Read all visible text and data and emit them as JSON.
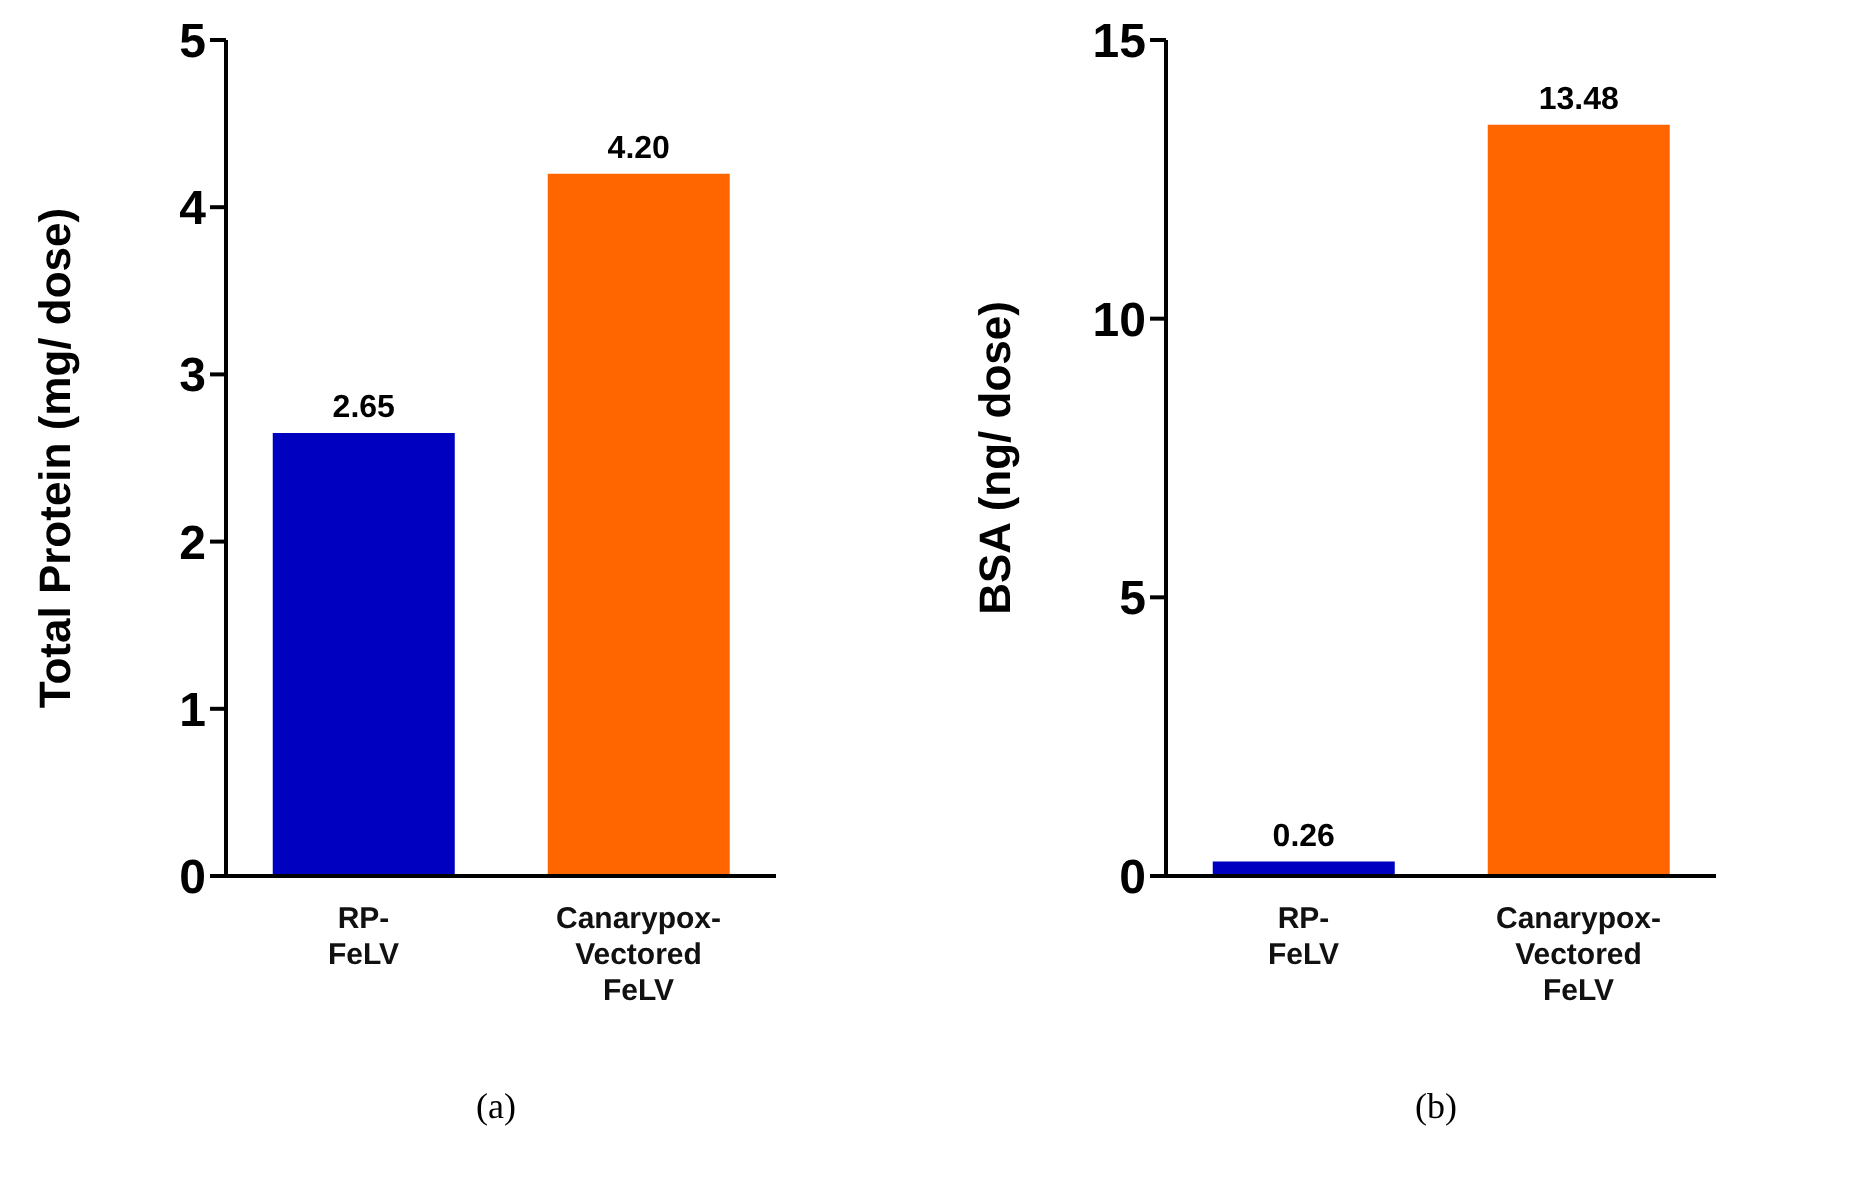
{
  "chart_data": [
    {
      "type": "bar",
      "ylabel": "Total Protein (mg/ dose)",
      "categories": [
        "RP-FeLV",
        "Canarypox-Vectored FeLV"
      ],
      "values": [
        2.65,
        4.2
      ],
      "value_labels": [
        "2.65",
        "4.20"
      ],
      "colors": [
        "#0000c0",
        "#ff6600"
      ],
      "ylim": [
        0,
        5
      ],
      "yticks": [
        0,
        1,
        2,
        3,
        4,
        5
      ],
      "annotations": [
        "(a)"
      ]
    },
    {
      "type": "bar",
      "ylabel": "BSA (ng/ dose)",
      "categories": [
        "RP-FeLV",
        "Canarypox-Vectored FeLV"
      ],
      "values": [
        0.26,
        13.48
      ],
      "value_labels": [
        "0.26",
        "13.48"
      ],
      "colors": [
        "#0000c0",
        "#ff6600"
      ],
      "ylim": [
        0,
        15
      ],
      "yticks": [
        0,
        5,
        10,
        15
      ],
      "annotations": [
        "(b)"
      ]
    }
  ]
}
